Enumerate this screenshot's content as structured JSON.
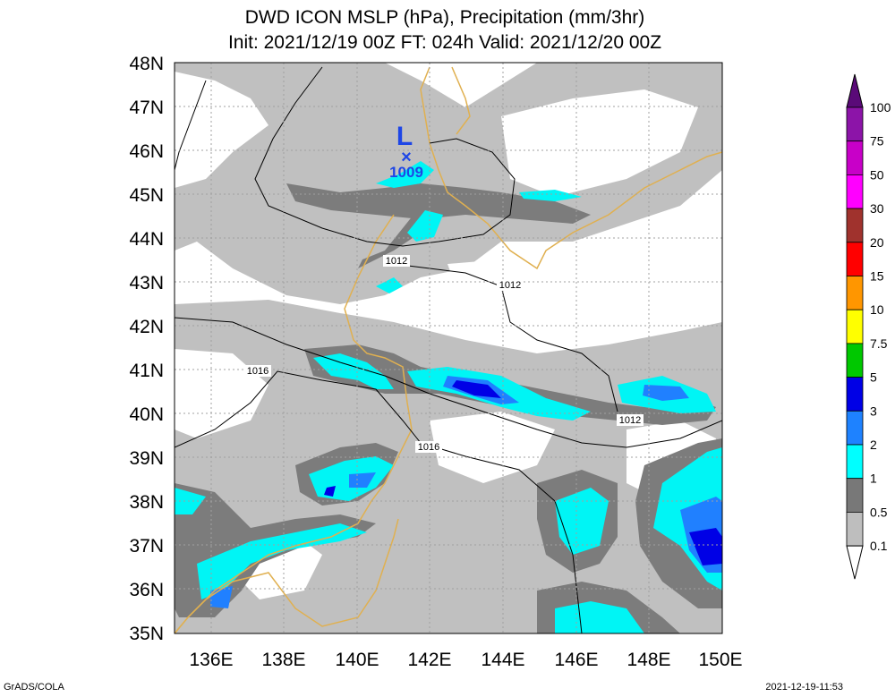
{
  "title": {
    "line1": "DWD ICON MSLP (hPa), Precipitation (mm/3hr)",
    "line2": "Init: 2021/12/19 00Z  FT: 024h  Valid: 2021/12/20 00Z"
  },
  "axes": {
    "lat_labels": [
      "48N",
      "47N",
      "46N",
      "45N",
      "44N",
      "43N",
      "42N",
      "41N",
      "40N",
      "39N",
      "38N",
      "37N",
      "36N",
      "35N"
    ],
    "lon_labels": [
      "136E",
      "138E",
      "140E",
      "142E",
      "144E",
      "146E",
      "148E",
      "150E"
    ]
  },
  "low_center": {
    "symbol": "L",
    "marker": "×",
    "pressure": "1009"
  },
  "isobar_labels": [
    "1012",
    "1012",
    "1016",
    "1012",
    "1016"
  ],
  "colorbar": {
    "labels": [
      "100",
      "75",
      "50",
      "30",
      "20",
      "15",
      "10",
      "7.5",
      "5",
      "3",
      "2",
      "1",
      "0.5",
      "0.1"
    ],
    "colors": [
      "#5a0a78",
      "#8c14a8",
      "#c800c8",
      "#ff00ff",
      "#a0322d",
      "#ff0000",
      "#ff9600",
      "#ffff00",
      "#00c800",
      "#0000e6",
      "#1e82ff",
      "#00ffff",
      "#787878",
      "#bebebe",
      "#ffffff"
    ]
  },
  "footer": {
    "left": "GrADS/COLA",
    "right": "2021-12-19-11:53"
  }
}
